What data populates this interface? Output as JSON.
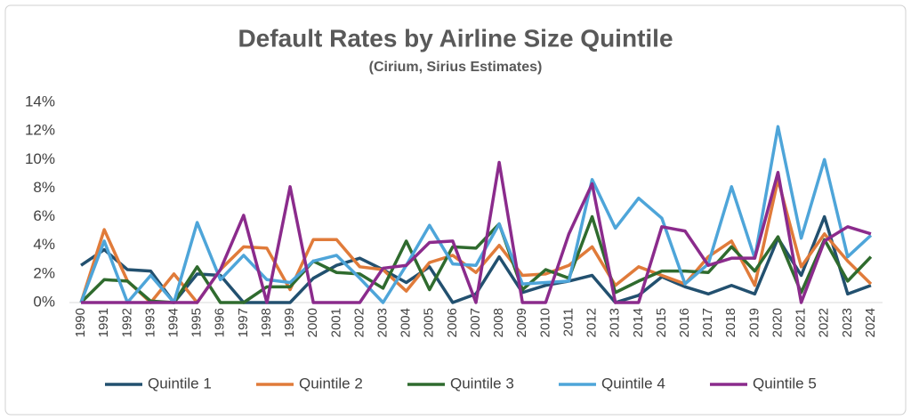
{
  "chart_data": {
    "type": "line",
    "title": "Default Rates by Airline Size Quintile",
    "subtitle": "(Cirium, Sirius Estimates)",
    "categories": [
      "1990",
      "1991",
      "1992",
      "1993",
      "1994",
      "1995",
      "1996",
      "1997",
      "1998",
      "1999",
      "2000",
      "2001",
      "2002",
      "2003",
      "2004",
      "2005",
      "2006",
      "2007",
      "2008",
      "2009",
      "2010",
      "2011",
      "2012",
      "2013",
      "2014",
      "2015",
      "2016",
      "2017",
      "2018",
      "2019",
      "2020",
      "2021",
      "2022",
      "2023",
      "2024"
    ],
    "series": [
      {
        "name": "Quintile 1",
        "color": "#22506f",
        "values": [
          2.6,
          3.7,
          2.3,
          2.2,
          0,
          2.0,
          1.9,
          0,
          0,
          0,
          1.7,
          2.6,
          3.1,
          2.3,
          1.4,
          2.5,
          0,
          0.6,
          3.2,
          0.7,
          1.2,
          1.5,
          1.9,
          0,
          0.5,
          1.8,
          1.1,
          0.6,
          1.2,
          0.6,
          4.5,
          1.9,
          6.0,
          0.6,
          1.2
        ]
      },
      {
        "name": "Quintile 2",
        "color": "#e07b3a",
        "values": [
          0,
          5.1,
          1.5,
          0,
          2.0,
          0,
          2.3,
          3.9,
          3.8,
          0.9,
          4.4,
          4.4,
          2.5,
          2.3,
          0.8,
          2.8,
          3.3,
          2.1,
          4.0,
          1.9,
          2.0,
          2.6,
          3.9,
          1.2,
          2.5,
          1.9,
          1.3,
          3.2,
          4.3,
          1.2,
          8.6,
          2.5,
          4.8,
          2.9,
          1.3
        ]
      },
      {
        "name": "Quintile 3",
        "color": "#2f6b2e",
        "values": [
          0,
          1.6,
          1.5,
          0.1,
          0,
          2.5,
          0,
          0,
          1.1,
          1.1,
          2.9,
          2.1,
          2.0,
          1.0,
          4.3,
          0.9,
          3.9,
          3.8,
          5.5,
          0.9,
          2.3,
          1.7,
          6.0,
          0.7,
          1.5,
          2.2,
          2.2,
          2.1,
          3.9,
          2.2,
          4.6,
          0.7,
          4.4,
          1.5,
          3.2
        ]
      },
      {
        "name": "Quintile 4",
        "color": "#4ea5d9",
        "values": [
          0,
          4.3,
          0,
          1.9,
          0,
          5.6,
          1.6,
          3.3,
          1.6,
          1.4,
          2.9,
          3.3,
          1.7,
          0,
          2.6,
          5.4,
          2.7,
          2.6,
          5.5,
          1.3,
          1.4,
          1.5,
          8.6,
          5.2,
          7.3,
          5.9,
          1.3,
          2.7,
          8.1,
          3.1,
          12.3,
          4.5,
          10.0,
          3.2,
          4.7
        ]
      },
      {
        "name": "Quintile 5",
        "color": "#8b2b8c",
        "values": [
          0,
          0,
          0,
          0,
          0,
          0,
          2.3,
          6.1,
          0,
          8.1,
          0,
          0,
          0,
          2.4,
          2.6,
          4.2,
          4.3,
          0,
          9.8,
          0,
          0,
          4.8,
          8.3,
          0,
          0,
          5.3,
          5.0,
          2.6,
          3.1,
          3.1,
          9.1,
          0,
          4.3,
          5.3,
          4.8
        ]
      }
    ],
    "ylim": [
      0,
      14
    ],
    "yticks": [
      {
        "value": 0,
        "label": "0%"
      },
      {
        "value": 2,
        "label": "2%"
      },
      {
        "value": 4,
        "label": "4%"
      },
      {
        "value": 6,
        "label": "6%"
      },
      {
        "value": 8,
        "label": "8%"
      },
      {
        "value": 10,
        "label": "10%"
      },
      {
        "value": 12,
        "label": "12%"
      },
      {
        "value": 14,
        "label": "14%"
      }
    ],
    "legend": "bottom"
  }
}
